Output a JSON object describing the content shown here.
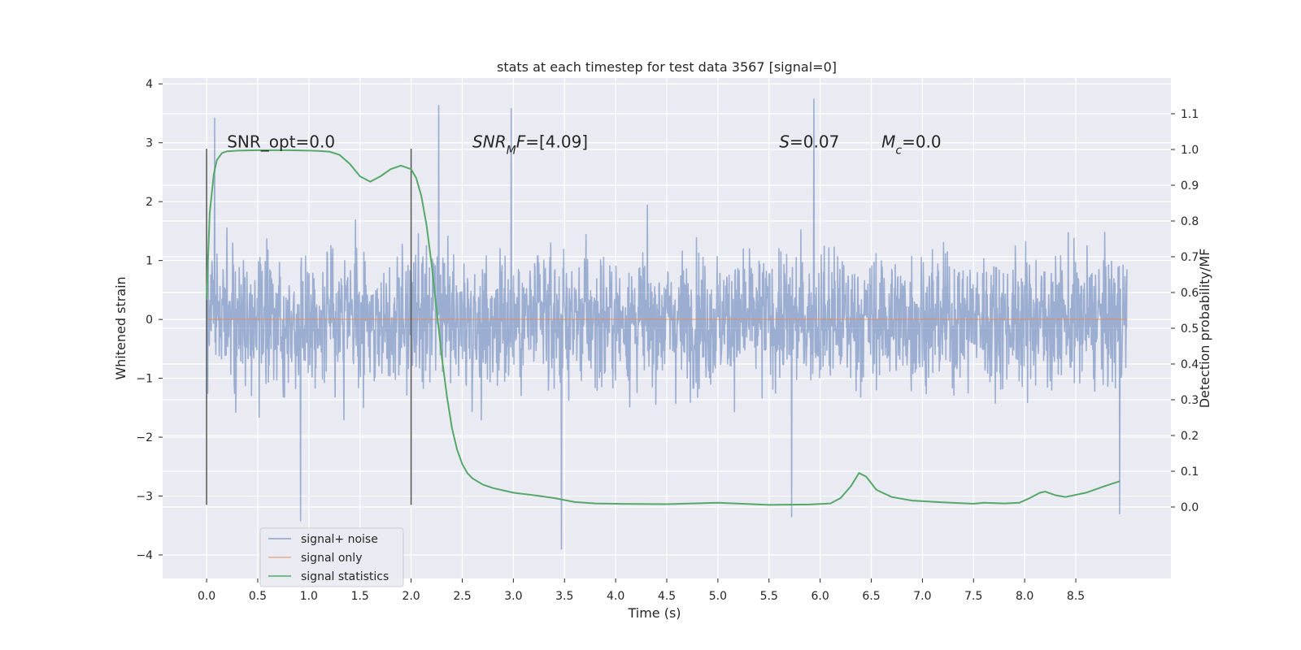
{
  "chart_data": {
    "type": "line",
    "title": "stats at each timestep for test data 3567 [signal=0]",
    "xlabel": "Time (s)",
    "ylabel": "Whitened strain",
    "y2label": "Detection probability/MF",
    "xlim": [
      -0.43,
      9.43
    ],
    "ylim": [
      -4.4,
      4.1
    ],
    "y2lim": [
      -0.2,
      1.2
    ],
    "xticks": [
      0.0,
      0.5,
      1.0,
      1.5,
      2.0,
      2.5,
      3.0,
      3.5,
      4.0,
      4.5,
      5.0,
      5.5,
      6.0,
      6.5,
      7.0,
      7.5,
      8.0,
      8.5
    ],
    "xtick_labels": [
      "0.0",
      "0.5",
      "1.0",
      "1.5",
      "2.0",
      "2.5",
      "3.0",
      "3.5",
      "4.0",
      "4.5",
      "5.0",
      "5.5",
      "6.0",
      "6.5",
      "7.0",
      "7.5",
      "8.0",
      "8.5"
    ],
    "yticks": [
      -4,
      -3,
      -2,
      -1,
      0,
      1,
      2,
      3,
      4
    ],
    "ytick_labels": [
      "−4",
      "−3",
      "−2",
      "−1",
      "0",
      "1",
      "2",
      "3",
      "4"
    ],
    "y2ticks": [
      0.0,
      0.1,
      0.2,
      0.3,
      0.4,
      0.5,
      0.6,
      0.7,
      0.8,
      0.9,
      1.0,
      1.1
    ],
    "y2tick_labels": [
      "0.0",
      "0.1",
      "0.2",
      "0.3",
      "0.4",
      "0.5",
      "0.6",
      "0.7",
      "0.8",
      "0.9",
      "1.0",
      "1.1"
    ],
    "grid": true,
    "legend_placement": "lower-left",
    "series": [
      {
        "name": "signal+ noise",
        "color": "#4c72b0",
        "axis": "left",
        "t_range": [
          0.0,
          9.0
        ],
        "noise_envelope": {
          "core_min": -1.5,
          "core_max": 1.2,
          "max_abs": 3.9
        },
        "spikes": [
          [
            0.08,
            3.42
          ],
          [
            0.92,
            -3.42
          ],
          [
            2.27,
            3.63
          ],
          [
            2.98,
            3.58
          ],
          [
            3.47,
            -4.0
          ],
          [
            5.94,
            3.74
          ],
          [
            5.72,
            -3.35
          ],
          [
            8.93,
            -3.3
          ]
        ]
      },
      {
        "name": "signal only",
        "color": "#dd8452",
        "axis": "left",
        "x": [
          0.0,
          9.0
        ],
        "y": [
          0.0,
          0.0
        ]
      },
      {
        "name": "signal statistics",
        "color": "#55a868",
        "axis": "right",
        "x": [
          0.0,
          0.03,
          0.07,
          0.1,
          0.15,
          0.2,
          0.3,
          0.5,
          0.8,
          1.0,
          1.1,
          1.2,
          1.3,
          1.4,
          1.5,
          1.6,
          1.7,
          1.8,
          1.9,
          2.0,
          2.05,
          2.1,
          2.15,
          2.2,
          2.25,
          2.3,
          2.35,
          2.4,
          2.45,
          2.5,
          2.55,
          2.6,
          2.7,
          2.8,
          3.0,
          3.2,
          3.4,
          3.6,
          3.8,
          4.0,
          4.5,
          5.0,
          5.5,
          5.9,
          6.1,
          6.2,
          6.3,
          6.38,
          6.45,
          6.55,
          6.7,
          6.9,
          7.2,
          7.5,
          7.6,
          7.8,
          7.95,
          8.05,
          8.15,
          8.2,
          8.3,
          8.4,
          8.6,
          8.8,
          8.93
        ],
        "y": [
          0.58,
          0.82,
          0.93,
          0.97,
          0.99,
          0.995,
          0.997,
          0.998,
          0.998,
          0.997,
          0.996,
          0.994,
          0.985,
          0.96,
          0.925,
          0.91,
          0.925,
          0.945,
          0.955,
          0.945,
          0.92,
          0.87,
          0.79,
          0.68,
          0.55,
          0.42,
          0.31,
          0.22,
          0.16,
          0.12,
          0.095,
          0.08,
          0.063,
          0.053,
          0.04,
          0.033,
          0.025,
          0.014,
          0.01,
          0.009,
          0.008,
          0.012,
          0.006,
          0.007,
          0.01,
          0.025,
          0.058,
          0.095,
          0.085,
          0.048,
          0.028,
          0.018,
          0.013,
          0.009,
          0.012,
          0.01,
          0.012,
          0.025,
          0.04,
          0.043,
          0.033,
          0.028,
          0.04,
          0.06,
          0.072
        ]
      }
    ],
    "vlines": [
      {
        "x": 0.0,
        "ymin": -3.15,
        "ymax": 2.9,
        "color": "#555555"
      },
      {
        "x": 2.0,
        "ymin": -3.15,
        "ymax": 2.9,
        "color": "#555555"
      }
    ],
    "annotations": [
      {
        "x": 0.2,
        "y": 2.92,
        "text": "SNR_opt=0.0",
        "italic": false
      },
      {
        "x": 2.6,
        "y": 2.92,
        "parts": [
          {
            "text": "SNR",
            "italic": true
          },
          {
            "text": "M",
            "italic": true,
            "sub": true
          },
          {
            "text": "F",
            "italic": true
          },
          {
            "text": "=[4.09]",
            "italic": false
          }
        ]
      },
      {
        "x": 5.6,
        "y": 2.92,
        "parts": [
          {
            "text": "S",
            "italic": true
          },
          {
            "text": "=0.07",
            "italic": false
          }
        ]
      },
      {
        "x": 6.6,
        "y": 2.92,
        "parts": [
          {
            "text": "M",
            "italic": true
          },
          {
            "text": "c",
            "italic": true,
            "sub": true
          },
          {
            "text": "=0.0",
            "italic": false
          }
        ]
      }
    ],
    "colors": {
      "background": "#eaeaf2",
      "grid": "#ffffff",
      "text": "#262626"
    }
  }
}
